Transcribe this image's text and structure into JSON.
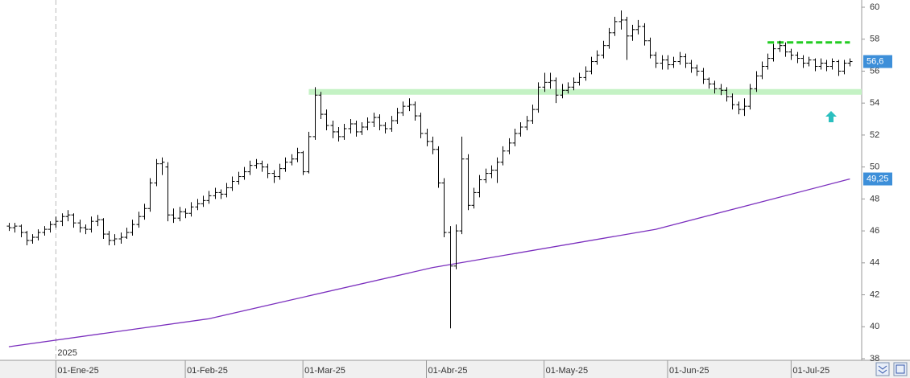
{
  "chart_data": {
    "type": "ohlc",
    "series": [
      {
        "color": "#000000",
        "values": [
          [
            46.3,
            46.5,
            46.0,
            46.2
          ],
          [
            46.2,
            46.5,
            45.9,
            46.3
          ],
          [
            46.3,
            46.4,
            45.6,
            45.9
          ],
          [
            45.9,
            46.0,
            45.1,
            45.4
          ],
          [
            45.4,
            45.8,
            45.2,
            45.6
          ],
          [
            45.6,
            46.1,
            45.4,
            45.9
          ],
          [
            45.9,
            46.3,
            45.7,
            46.1
          ],
          [
            46.1,
            46.6,
            45.9,
            46.4
          ],
          [
            46.4,
            46.9,
            46.2,
            46.6
          ],
          [
            46.6,
            47.1,
            46.3,
            46.9
          ],
          [
            46.9,
            47.3,
            46.6,
            47.0
          ],
          [
            47.0,
            47.1,
            46.2,
            46.5
          ],
          [
            46.5,
            46.7,
            45.9,
            46.2
          ],
          [
            46.2,
            46.4,
            45.8,
            46.1
          ],
          [
            46.1,
            46.9,
            45.9,
            46.6
          ],
          [
            46.6,
            47.0,
            46.3,
            46.7
          ],
          [
            46.7,
            46.8,
            45.5,
            45.8
          ],
          [
            45.8,
            46.0,
            45.1,
            45.4
          ],
          [
            45.4,
            45.8,
            45.1,
            45.5
          ],
          [
            45.5,
            45.9,
            45.2,
            45.6
          ],
          [
            45.6,
            46.2,
            45.5,
            45.9
          ],
          [
            45.9,
            46.7,
            45.7,
            46.4
          ],
          [
            46.4,
            47.2,
            46.2,
            46.9
          ],
          [
            46.9,
            47.7,
            46.7,
            47.4
          ],
          [
            47.4,
            49.3,
            47.2,
            49.0
          ],
          [
            49.0,
            50.5,
            48.8,
            50.2
          ],
          [
            50.2,
            50.6,
            49.5,
            50.3
          ],
          [
            50.0,
            50.3,
            46.6,
            47.0
          ],
          [
            47.0,
            47.4,
            46.5,
            46.8
          ],
          [
            46.8,
            47.5,
            46.6,
            47.2
          ],
          [
            47.2,
            47.4,
            46.8,
            47.1
          ],
          [
            47.1,
            47.8,
            46.9,
            47.5
          ],
          [
            47.5,
            48.0,
            47.3,
            47.7
          ],
          [
            47.7,
            48.2,
            47.5,
            47.9
          ],
          [
            47.9,
            48.5,
            47.7,
            48.2
          ],
          [
            48.2,
            48.7,
            48.0,
            48.4
          ],
          [
            48.4,
            48.6,
            48.0,
            48.3
          ],
          [
            48.3,
            49.0,
            48.1,
            48.7
          ],
          [
            48.7,
            49.4,
            48.5,
            49.1
          ],
          [
            49.1,
            49.7,
            48.9,
            49.4
          ],
          [
            49.4,
            50.0,
            49.2,
            49.7
          ],
          [
            49.7,
            50.4,
            49.5,
            50.1
          ],
          [
            50.1,
            50.5,
            49.9,
            50.2
          ],
          [
            50.2,
            50.4,
            49.7,
            50.0
          ],
          [
            50.0,
            50.2,
            49.3,
            49.6
          ],
          [
            49.6,
            49.8,
            49.0,
            49.4
          ],
          [
            49.4,
            50.2,
            49.2,
            49.9
          ],
          [
            49.9,
            50.6,
            49.7,
            50.3
          ],
          [
            50.3,
            50.8,
            50.1,
            50.5
          ],
          [
            50.5,
            51.2,
            50.3,
            50.9
          ],
          [
            50.9,
            51.0,
            49.5,
            49.7
          ],
          [
            49.7,
            52.2,
            49.6,
            51.9
          ],
          [
            51.9,
            55.0,
            51.7,
            54.5
          ],
          [
            54.5,
            54.7,
            53.0,
            53.3
          ],
          [
            53.3,
            53.6,
            52.3,
            52.6
          ],
          [
            52.6,
            52.9,
            51.8,
            52.2
          ],
          [
            52.2,
            52.5,
            51.6,
            51.9
          ],
          [
            51.9,
            52.7,
            51.7,
            52.4
          ],
          [
            52.4,
            53.0,
            52.1,
            52.7
          ],
          [
            52.7,
            52.9,
            51.9,
            52.2
          ],
          [
            52.2,
            52.8,
            52.0,
            52.5
          ],
          [
            52.5,
            53.1,
            52.3,
            52.8
          ],
          [
            52.8,
            53.4,
            52.5,
            53.1
          ],
          [
            53.1,
            53.3,
            52.3,
            52.6
          ],
          [
            52.6,
            52.8,
            52.1,
            52.4
          ],
          [
            52.4,
            53.2,
            52.2,
            52.9
          ],
          [
            52.9,
            53.7,
            52.7,
            53.4
          ],
          [
            53.4,
            54.1,
            53.2,
            53.8
          ],
          [
            53.8,
            54.3,
            53.5,
            53.9
          ],
          [
            53.9,
            54.1,
            52.9,
            53.2
          ],
          [
            53.2,
            53.4,
            51.8,
            52.1
          ],
          [
            52.1,
            52.4,
            51.3,
            51.6
          ],
          [
            51.6,
            51.9,
            50.8,
            51.1
          ],
          [
            51.1,
            51.3,
            48.7,
            49.0
          ],
          [
            49.0,
            49.3,
            45.6,
            45.9
          ],
          [
            45.9,
            46.3,
            39.9,
            43.8
          ],
          [
            43.8,
            46.4,
            43.6,
            46.0
          ],
          [
            46.0,
            51.9,
            45.8,
            50.5
          ],
          [
            50.5,
            50.8,
            47.3,
            47.6
          ],
          [
            47.6,
            48.7,
            47.4,
            48.4
          ],
          [
            48.4,
            49.5,
            48.1,
            49.2
          ],
          [
            49.2,
            49.9,
            49.0,
            49.6
          ],
          [
            49.6,
            50.1,
            49.3,
            49.8
          ],
          [
            49.8,
            50.6,
            49.0,
            50.3
          ],
          [
            50.3,
            51.3,
            50.1,
            51.0
          ],
          [
            51.0,
            51.8,
            50.8,
            51.5
          ],
          [
            51.5,
            52.4,
            51.3,
            52.1
          ],
          [
            52.1,
            52.8,
            51.9,
            52.5
          ],
          [
            52.5,
            53.2,
            52.3,
            52.9
          ],
          [
            52.9,
            53.9,
            52.7,
            53.6
          ],
          [
            53.6,
            55.3,
            53.4,
            55.0
          ],
          [
            55.0,
            55.9,
            54.7,
            55.3
          ],
          [
            55.3,
            55.9,
            54.9,
            55.4
          ],
          [
            55.4,
            55.6,
            54.0,
            54.5
          ],
          [
            54.5,
            55.2,
            54.3,
            54.8
          ],
          [
            54.8,
            55.3,
            54.6,
            55.0
          ],
          [
            55.0,
            55.6,
            54.8,
            55.3
          ],
          [
            55.3,
            55.9,
            55.1,
            55.6
          ],
          [
            55.6,
            56.3,
            55.4,
            56.0
          ],
          [
            56.0,
            56.9,
            55.8,
            56.6
          ],
          [
            56.6,
            57.3,
            56.4,
            57.0
          ],
          [
            57.0,
            57.9,
            56.8,
            57.6
          ],
          [
            57.6,
            58.7,
            57.4,
            58.4
          ],
          [
            58.4,
            59.4,
            58.2,
            59.1
          ],
          [
            59.1,
            59.8,
            58.6,
            59.2
          ],
          [
            59.2,
            59.4,
            56.7,
            58.2
          ],
          [
            58.2,
            58.9,
            57.9,
            58.6
          ],
          [
            58.6,
            59.2,
            58.3,
            58.8
          ],
          [
            58.8,
            59.0,
            57.6,
            57.9
          ],
          [
            57.9,
            58.1,
            56.8,
            57.0
          ],
          [
            57.0,
            57.2,
            56.2,
            56.5
          ],
          [
            56.5,
            57.0,
            56.1,
            56.7
          ],
          [
            56.7,
            57.0,
            56.1,
            56.4
          ],
          [
            56.4,
            56.9,
            56.2,
            56.6
          ],
          [
            56.6,
            57.2,
            56.4,
            56.9
          ],
          [
            56.9,
            57.1,
            56.2,
            56.5
          ],
          [
            56.5,
            56.7,
            55.9,
            56.2
          ],
          [
            56.2,
            56.4,
            55.7,
            56.0
          ],
          [
            56.0,
            56.2,
            55.2,
            55.5
          ],
          [
            55.5,
            55.6,
            54.9,
            55.2
          ],
          [
            55.2,
            55.4,
            54.6,
            54.9
          ],
          [
            54.9,
            55.2,
            54.5,
            54.8
          ],
          [
            54.8,
            55.0,
            54.1,
            54.4
          ],
          [
            54.4,
            54.6,
            53.6,
            53.9
          ],
          [
            53.9,
            54.1,
            53.3,
            53.6
          ],
          [
            53.6,
            54.3,
            53.2,
            53.8
          ],
          [
            53.8,
            55.2,
            53.6,
            54.9
          ],
          [
            54.9,
            56.0,
            54.7,
            55.7
          ],
          [
            55.7,
            56.6,
            55.5,
            56.3
          ],
          [
            56.3,
            57.1,
            56.1,
            56.8
          ],
          [
            56.8,
            57.7,
            56.6,
            57.4
          ],
          [
            57.4,
            57.9,
            57.2,
            57.6
          ],
          [
            57.6,
            57.8,
            56.9,
            57.2
          ],
          [
            57.2,
            57.4,
            56.7,
            57.0
          ],
          [
            57.0,
            57.2,
            56.5,
            56.8
          ],
          [
            56.8,
            57.0,
            56.2,
            56.5
          ],
          [
            56.5,
            56.9,
            56.3,
            56.7
          ],
          [
            56.7,
            56.8,
            56.0,
            56.3
          ],
          [
            56.3,
            56.8,
            56.1,
            56.5
          ],
          [
            56.5,
            56.7,
            56.0,
            56.3
          ],
          [
            56.3,
            56.8,
            56.1,
            56.6
          ],
          [
            56.6,
            56.7,
            55.7,
            56.0
          ],
          [
            56.0,
            56.7,
            55.8,
            56.5
          ],
          [
            56.5,
            56.8,
            56.3,
            56.6
          ]
        ]
      }
    ],
    "ma": {
      "color": "#7b2fbe",
      "x": [
        0,
        34,
        72,
        110,
        143
      ],
      "values": [
        38.75,
        40.5,
        43.7,
        46.1,
        49.25
      ]
    },
    "levels": [
      {
        "value": 54.7,
        "x": [
          51,
          145
        ],
        "color": "#c4f2c4",
        "style": "band"
      },
      {
        "value": 57.8,
        "x": [
          129,
          143
        ],
        "color": "#22cc22",
        "style": "dashed"
      }
    ],
    "price_labels": [
      {
        "value": 56.6,
        "label": "56,6",
        "color": "#3d8fd9"
      },
      {
        "value": 49.25,
        "label": "49,25",
        "color": "#3d8fd9"
      }
    ],
    "year_label": "2025",
    "xlim": [
      -1.5,
      145
    ],
    "xticks": [
      {
        "value": 8,
        "label": "01-Ene-25"
      },
      {
        "value": 30,
        "label": "01-Feb-25"
      },
      {
        "value": 50,
        "label": "01-Mar-25"
      },
      {
        "value": 71,
        "label": "01-Abr-25"
      },
      {
        "value": 91,
        "label": "01-May-25"
      },
      {
        "value": 112,
        "label": "01-Jun-25"
      },
      {
        "value": 133,
        "label": "01-Jul-25"
      }
    ],
    "ylim": [
      38,
      60
    ],
    "yticks": [
      38,
      40,
      42,
      44,
      46,
      48,
      50,
      52,
      54,
      56,
      58,
      60
    ]
  }
}
